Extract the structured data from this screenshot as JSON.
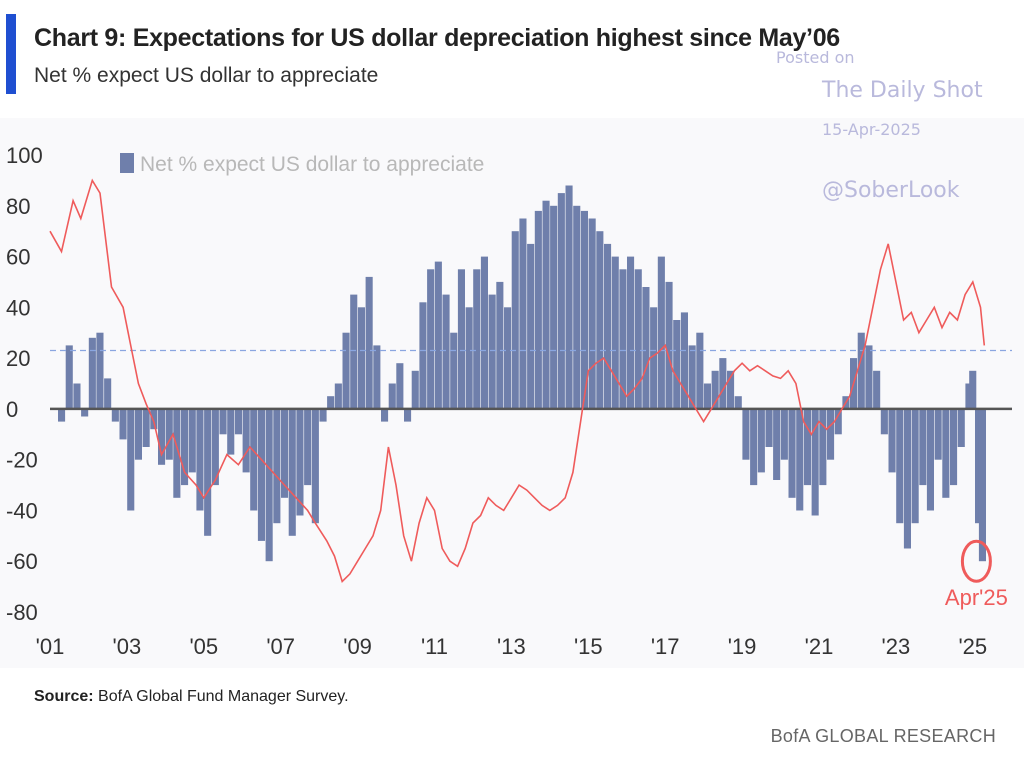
{
  "header": {
    "title": "Chart 9: Expectations for US dollar depreciation highest since May’06",
    "subtitle": "Net % expect US dollar to appreciate"
  },
  "watermark": {
    "posted_on": "Posted on",
    "name": "The Daily Shot",
    "date": "15-Apr-2025",
    "handle": "@SoberLook"
  },
  "footer": {
    "source_label": "Source:",
    "source_text": "BofA Global Fund Manager Survey.",
    "brand": "BofA GLOBAL RESEARCH"
  },
  "colors": {
    "accent": "#1f4fd1",
    "bars": "#6f7fab",
    "dxy_line": "#ef5b5b",
    "overlap_line": "#8b1e3f",
    "zero_line": "#555555",
    "ref_line": "#8aa6e0",
    "highlight": "#ef5b5b"
  },
  "chart_data": {
    "type": "bar",
    "legend": {
      "label": "Net % expect US dollar to appreciate",
      "position": "top-left"
    },
    "xlim": [
      2001,
      2025.5
    ],
    "ylim": [
      -80,
      100
    ],
    "yticks": [
      100,
      80,
      60,
      40,
      20,
      0,
      -20,
      -40,
      -60,
      -80
    ],
    "xticks": [
      {
        "x": 2001,
        "label": "'01"
      },
      {
        "x": 2003,
        "label": "'03"
      },
      {
        "x": 2005,
        "label": "'05"
      },
      {
        "x": 2007,
        "label": "'07"
      },
      {
        "x": 2009,
        "label": "'09"
      },
      {
        "x": 2011,
        "label": "'11"
      },
      {
        "x": 2013,
        "label": "'13"
      },
      {
        "x": 2015,
        "label": "'15"
      },
      {
        "x": 2017,
        "label": "'17"
      },
      {
        "x": 2019,
        "label": "'19"
      },
      {
        "x": 2021,
        "label": "'21"
      },
      {
        "x": 2023,
        "label": "'23"
      },
      {
        "x": 2025,
        "label": "'25"
      }
    ],
    "annotation": {
      "label": "Apr'25",
      "x": 2025.25,
      "y": -60
    },
    "reference_line_y": 23,
    "series": [
      {
        "name": "Net % expect US dollar to appreciate",
        "kind": "bar",
        "points": [
          [
            2001.3,
            -5
          ],
          [
            2001.5,
            25
          ],
          [
            2001.7,
            10
          ],
          [
            2001.9,
            -3
          ],
          [
            2002.1,
            28
          ],
          [
            2002.3,
            30
          ],
          [
            2002.5,
            12
          ],
          [
            2002.7,
            -5
          ],
          [
            2002.9,
            -12
          ],
          [
            2003.1,
            -40
          ],
          [
            2003.3,
            -20
          ],
          [
            2003.5,
            -15
          ],
          [
            2003.7,
            -8
          ],
          [
            2003.9,
            -22
          ],
          [
            2004.1,
            -20
          ],
          [
            2004.3,
            -35
          ],
          [
            2004.5,
            -30
          ],
          [
            2004.7,
            -25
          ],
          [
            2004.9,
            -40
          ],
          [
            2005.1,
            -50
          ],
          [
            2005.3,
            -30
          ],
          [
            2005.5,
            -10
          ],
          [
            2005.7,
            -18
          ],
          [
            2005.9,
            -10
          ],
          [
            2006.1,
            -25
          ],
          [
            2006.3,
            -40
          ],
          [
            2006.5,
            -52
          ],
          [
            2006.7,
            -60
          ],
          [
            2006.9,
            -45
          ],
          [
            2007.1,
            -35
          ],
          [
            2007.3,
            -50
          ],
          [
            2007.5,
            -42
          ],
          [
            2007.7,
            -30
          ],
          [
            2007.9,
            -45
          ],
          [
            2008.1,
            -5
          ],
          [
            2008.3,
            5
          ],
          [
            2008.5,
            10
          ],
          [
            2008.7,
            30
          ],
          [
            2008.9,
            45
          ],
          [
            2009.1,
            40
          ],
          [
            2009.3,
            52
          ],
          [
            2009.5,
            25
          ],
          [
            2009.7,
            -5
          ],
          [
            2009.9,
            10
          ],
          [
            2010.1,
            18
          ],
          [
            2010.3,
            -5
          ],
          [
            2010.5,
            15
          ],
          [
            2010.7,
            42
          ],
          [
            2010.9,
            55
          ],
          [
            2011.1,
            58
          ],
          [
            2011.3,
            45
          ],
          [
            2011.5,
            30
          ],
          [
            2011.7,
            55
          ],
          [
            2011.9,
            40
          ],
          [
            2012.1,
            55
          ],
          [
            2012.3,
            60
          ],
          [
            2012.5,
            45
          ],
          [
            2012.7,
            50
          ],
          [
            2012.9,
            40
          ],
          [
            2013.1,
            70
          ],
          [
            2013.3,
            75
          ],
          [
            2013.5,
            65
          ],
          [
            2013.7,
            78
          ],
          [
            2013.9,
            82
          ],
          [
            2014.1,
            80
          ],
          [
            2014.3,
            85
          ],
          [
            2014.5,
            88
          ],
          [
            2014.7,
            80
          ],
          [
            2014.9,
            78
          ],
          [
            2015.1,
            75
          ],
          [
            2015.3,
            70
          ],
          [
            2015.5,
            65
          ],
          [
            2015.7,
            60
          ],
          [
            2015.9,
            55
          ],
          [
            2016.1,
            60
          ],
          [
            2016.3,
            55
          ],
          [
            2016.5,
            48
          ],
          [
            2016.7,
            40
          ],
          [
            2016.9,
            60
          ],
          [
            2017.1,
            50
          ],
          [
            2017.3,
            35
          ],
          [
            2017.5,
            38
          ],
          [
            2017.7,
            25
          ],
          [
            2017.9,
            30
          ],
          [
            2018.1,
            10
          ],
          [
            2018.3,
            15
          ],
          [
            2018.5,
            20
          ],
          [
            2018.7,
            15
          ],
          [
            2018.9,
            5
          ],
          [
            2019.1,
            -20
          ],
          [
            2019.3,
            -30
          ],
          [
            2019.5,
            -25
          ],
          [
            2019.7,
            -15
          ],
          [
            2019.9,
            -28
          ],
          [
            2020.1,
            -20
          ],
          [
            2020.3,
            -35
          ],
          [
            2020.5,
            -40
          ],
          [
            2020.7,
            -30
          ],
          [
            2020.9,
            -42
          ],
          [
            2021.1,
            -30
          ],
          [
            2021.3,
            -20
          ],
          [
            2021.5,
            -10
          ],
          [
            2021.7,
            5
          ],
          [
            2021.9,
            20
          ],
          [
            2022.1,
            30
          ],
          [
            2022.3,
            25
          ],
          [
            2022.5,
            15
          ],
          [
            2022.7,
            -10
          ],
          [
            2022.9,
            -25
          ],
          [
            2023.1,
            -45
          ],
          [
            2023.3,
            -55
          ],
          [
            2023.5,
            -45
          ],
          [
            2023.7,
            -30
          ],
          [
            2023.9,
            -40
          ],
          [
            2024.1,
            -20
          ],
          [
            2024.3,
            -35
          ],
          [
            2024.5,
            -30
          ],
          [
            2024.7,
            -15
          ],
          [
            2024.9,
            10
          ],
          [
            2025.0,
            15
          ],
          [
            2025.15,
            -45
          ],
          [
            2025.25,
            -60
          ]
        ]
      },
      {
        "kind": "line",
        "points": [
          [
            2001.0,
            70
          ],
          [
            2001.3,
            62
          ],
          [
            2001.6,
            82
          ],
          [
            2001.8,
            75
          ],
          [
            2002.1,
            90
          ],
          [
            2002.3,
            85
          ],
          [
            2002.6,
            48
          ],
          [
            2002.9,
            40
          ],
          [
            2003.1,
            25
          ],
          [
            2003.3,
            10
          ],
          [
            2003.5,
            2
          ],
          [
            2003.7,
            -5
          ],
          [
            2003.9,
            -18
          ],
          [
            2004.2,
            -10
          ],
          [
            2004.5,
            -25
          ],
          [
            2004.8,
            -30
          ],
          [
            2005.0,
            -35
          ],
          [
            2005.3,
            -28
          ],
          [
            2005.6,
            -18
          ],
          [
            2005.9,
            -22
          ],
          [
            2006.2,
            -15
          ],
          [
            2006.5,
            -20
          ],
          [
            2006.8,
            -25
          ],
          [
            2007.1,
            -30
          ],
          [
            2007.4,
            -35
          ],
          [
            2007.7,
            -40
          ],
          [
            2007.9,
            -45
          ],
          [
            2008.2,
            -52
          ],
          [
            2008.4,
            -58
          ],
          [
            2008.6,
            -68
          ],
          [
            2008.8,
            -65
          ],
          [
            2009.0,
            -60
          ],
          [
            2009.2,
            -55
          ],
          [
            2009.4,
            -50
          ],
          [
            2009.6,
            -40
          ],
          [
            2009.8,
            -15
          ],
          [
            2010.0,
            -30
          ],
          [
            2010.2,
            -50
          ],
          [
            2010.4,
            -60
          ],
          [
            2010.6,
            -45
          ],
          [
            2010.8,
            -35
          ],
          [
            2011.0,
            -40
          ],
          [
            2011.2,
            -55
          ],
          [
            2011.4,
            -60
          ],
          [
            2011.6,
            -62
          ],
          [
            2011.8,
            -55
          ],
          [
            2012.0,
            -45
          ],
          [
            2012.2,
            -42
          ],
          [
            2012.4,
            -35
          ],
          [
            2012.6,
            -38
          ],
          [
            2012.8,
            -40
          ],
          [
            2013.0,
            -35
          ],
          [
            2013.2,
            -30
          ],
          [
            2013.4,
            -32
          ],
          [
            2013.6,
            -35
          ],
          [
            2013.8,
            -38
          ],
          [
            2014.0,
            -40
          ],
          [
            2014.2,
            -38
          ],
          [
            2014.4,
            -35
          ],
          [
            2014.6,
            -25
          ],
          [
            2014.8,
            -5
          ],
          [
            2015.0,
            15
          ],
          [
            2015.2,
            18
          ],
          [
            2015.4,
            20
          ],
          [
            2015.6,
            15
          ],
          [
            2015.8,
            10
          ],
          [
            2016.0,
            5
          ],
          [
            2016.2,
            8
          ],
          [
            2016.4,
            12
          ],
          [
            2016.6,
            20
          ],
          [
            2016.8,
            22
          ],
          [
            2017.0,
            25
          ],
          [
            2017.2,
            15
          ],
          [
            2017.4,
            10
          ],
          [
            2017.6,
            5
          ],
          [
            2017.8,
            0
          ],
          [
            2018.0,
            -5
          ],
          [
            2018.2,
            0
          ],
          [
            2018.4,
            5
          ],
          [
            2018.6,
            10
          ],
          [
            2018.8,
            15
          ],
          [
            2019.0,
            18
          ],
          [
            2019.2,
            15
          ],
          [
            2019.4,
            17
          ],
          [
            2019.6,
            15
          ],
          [
            2019.8,
            13
          ],
          [
            2020.0,
            12
          ],
          [
            2020.2,
            15
          ],
          [
            2020.4,
            10
          ],
          [
            2020.6,
            -5
          ],
          [
            2020.8,
            -10
          ],
          [
            2021.0,
            -5
          ],
          [
            2021.2,
            -8
          ],
          [
            2021.4,
            -5
          ],
          [
            2021.6,
            0
          ],
          [
            2021.8,
            5
          ],
          [
            2022.0,
            15
          ],
          [
            2022.2,
            25
          ],
          [
            2022.4,
            40
          ],
          [
            2022.6,
            55
          ],
          [
            2022.8,
            65
          ],
          [
            2023.0,
            50
          ],
          [
            2023.2,
            35
          ],
          [
            2023.4,
            38
          ],
          [
            2023.6,
            30
          ],
          [
            2023.8,
            35
          ],
          [
            2024.0,
            40
          ],
          [
            2024.2,
            32
          ],
          [
            2024.4,
            38
          ],
          [
            2024.6,
            35
          ],
          [
            2024.8,
            45
          ],
          [
            2025.0,
            50
          ],
          [
            2025.2,
            40
          ],
          [
            2025.3,
            25
          ]
        ]
      }
    ]
  }
}
